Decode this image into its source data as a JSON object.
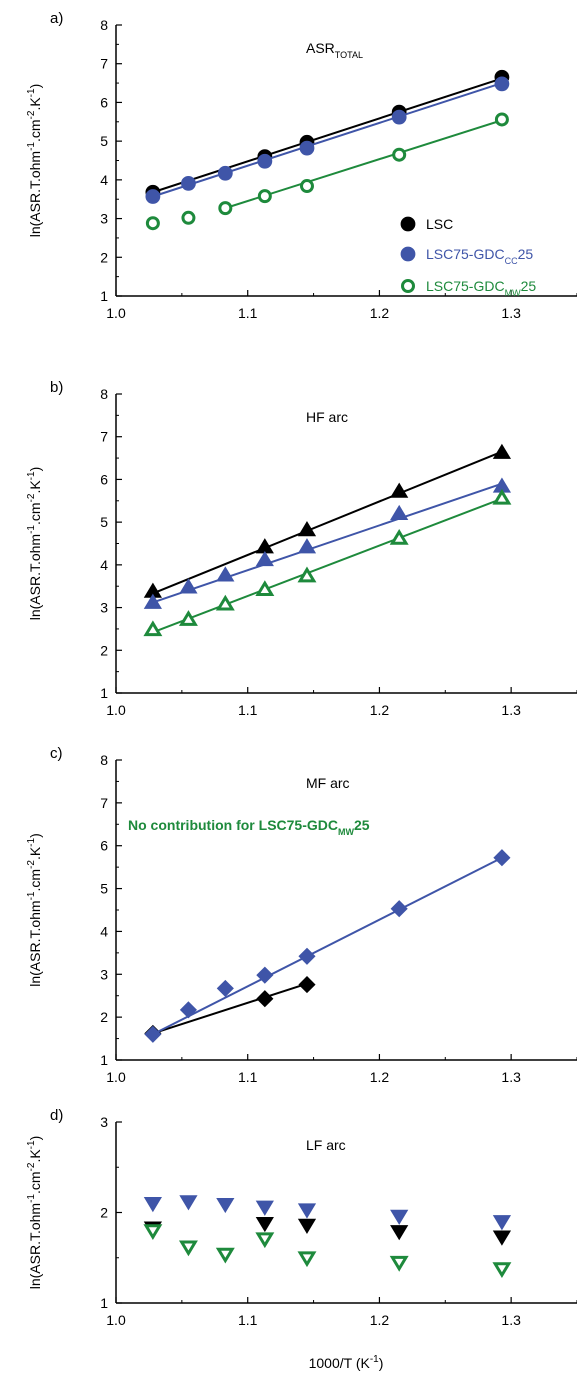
{
  "figure": {
    "x_axis_label": "1000/T (K",
    "x_axis_label_sup": "-1",
    "x_axis_label_end": ")"
  },
  "colors": {
    "LSC": "#000000",
    "GDC_CC": "#3f55a8",
    "GDC_MW": "#1e8a3c"
  },
  "legend": [
    {
      "series": "LSC",
      "text": "LSC",
      "sub": "",
      "tail": "",
      "color": "#000000"
    },
    {
      "series": "GDC_CC",
      "text": "LSC75-GDC",
      "sub": "CC",
      "tail": "25",
      "color": "#3f55a8"
    },
    {
      "series": "GDC_MW",
      "text": "LSC75-GDC",
      "sub": "MW",
      "tail": "25",
      "color": "#1e8a3c"
    }
  ],
  "chart_data": [
    {
      "type": "scatter",
      "panel_label": "a)",
      "title": "ASR",
      "title_sub": "TOTAL",
      "note": "",
      "note_sub": "",
      "note_tail": "",
      "ylabel_pre": "ln(ASR.T.ohm",
      "ylabel_sup1": "-1",
      "ylabel_mid": ".cm",
      "ylabel_sup2": "-2",
      "ylabel_mid2": ".K",
      "ylabel_sup3": "-1",
      "ylabel_post": ")",
      "xlim": [
        1.0,
        1.35
      ],
      "ylim": [
        1,
        8
      ],
      "xticks": [
        "1.0",
        "1.1",
        "1.2",
        "1.3"
      ],
      "yticks": [
        "1",
        "2",
        "3",
        "4",
        "5",
        "6",
        "7",
        "8"
      ],
      "marker": "circle",
      "show_legend": true,
      "series": [
        {
          "name": "LSC",
          "color_key": "LSC",
          "filled": true,
          "x": [
            1.028,
            1.113,
            1.145,
            1.215,
            1.293
          ],
          "y": [
            3.68,
            4.6,
            4.97,
            5.75,
            6.65
          ],
          "fit": [
            [
              1.028,
              3.68
            ],
            [
              1.293,
              6.62
            ]
          ]
        },
        {
          "name": "LSC75-GDCCC25",
          "color_key": "GDC_CC",
          "filled": true,
          "x": [
            1.028,
            1.055,
            1.083,
            1.113,
            1.145,
            1.215,
            1.293
          ],
          "y": [
            3.57,
            3.91,
            4.17,
            4.48,
            4.82,
            5.62,
            6.48
          ],
          "fit": [
            [
              1.028,
              3.57
            ],
            [
              1.293,
              6.5
            ]
          ]
        },
        {
          "name": "LSC75-GDCMW25",
          "color_key": "GDC_MW",
          "filled": false,
          "x": [
            1.028,
            1.055,
            1.083,
            1.113,
            1.145,
            1.215,
            1.293
          ],
          "y": [
            2.88,
            3.02,
            3.27,
            3.58,
            3.84,
            4.65,
            5.56
          ],
          "fit": [
            [
              1.083,
              3.27
            ],
            [
              1.293,
              5.54
            ]
          ]
        }
      ]
    },
    {
      "type": "scatter",
      "panel_label": "b)",
      "title": "HF arc",
      "title_sub": "",
      "note": "",
      "note_sub": "",
      "note_tail": "",
      "ylabel_pre": "ln(ASR.T.ohm",
      "ylabel_sup1": "-1",
      "ylabel_mid": ".cm",
      "ylabel_sup2": "-2",
      "ylabel_mid2": ".K",
      "ylabel_sup3": "-1",
      "ylabel_post": ")",
      "xlim": [
        1.0,
        1.35
      ],
      "ylim": [
        1,
        8
      ],
      "xticks": [
        "1.0",
        "1.1",
        "1.2",
        "1.3"
      ],
      "yticks": [
        "1",
        "2",
        "3",
        "4",
        "5",
        "6",
        "7",
        "8"
      ],
      "marker": "triangle-up",
      "show_legend": false,
      "series": [
        {
          "name": "LSC",
          "color_key": "LSC",
          "filled": true,
          "x": [
            1.028,
            1.113,
            1.145,
            1.215,
            1.293
          ],
          "y": [
            3.38,
            4.42,
            4.82,
            5.72,
            6.63
          ],
          "fit": [
            [
              1.028,
              3.33
            ],
            [
              1.293,
              6.65
            ]
          ]
        },
        {
          "name": "LSC75-GDCCC25",
          "color_key": "GDC_CC",
          "filled": true,
          "x": [
            1.028,
            1.055,
            1.083,
            1.113,
            1.145,
            1.215,
            1.293
          ],
          "y": [
            3.12,
            3.48,
            3.76,
            4.12,
            4.42,
            5.2,
            5.84
          ],
          "fit": [
            [
              1.028,
              3.12
            ],
            [
              1.293,
              5.9
            ]
          ]
        },
        {
          "name": "LSC75-GDCMW25",
          "color_key": "GDC_MW",
          "filled": false,
          "x": [
            1.028,
            1.055,
            1.083,
            1.113,
            1.145,
            1.215,
            1.293
          ],
          "y": [
            2.48,
            2.72,
            3.08,
            3.42,
            3.74,
            4.62,
            5.56
          ],
          "fit": [
            [
              1.028,
              2.42
            ],
            [
              1.293,
              5.55
            ]
          ]
        }
      ]
    },
    {
      "type": "scatter",
      "panel_label": "c)",
      "title": "MF arc",
      "title_sub": "",
      "note": "No contribution for LSC75-GDC",
      "note_sub": "MW",
      "note_tail": "25",
      "ylabel_pre": "ln(ASR.T.ohm",
      "ylabel_sup1": "-1",
      "ylabel_mid": ".cm",
      "ylabel_sup2": "-2",
      "ylabel_mid2": ".K",
      "ylabel_sup3": "-1",
      "ylabel_post": ")",
      "xlim": [
        1.0,
        1.35
      ],
      "ylim": [
        1,
        8
      ],
      "xticks": [
        "1.0",
        "1.1",
        "1.2",
        "1.3"
      ],
      "yticks": [
        "1",
        "2",
        "3",
        "4",
        "5",
        "6",
        "7",
        "8"
      ],
      "marker": "diamond",
      "show_legend": false,
      "series": [
        {
          "name": "LSC",
          "color_key": "LSC",
          "filled": true,
          "x": [
            1.028,
            1.113,
            1.145
          ],
          "y": [
            1.62,
            2.43,
            2.76
          ],
          "fit": [
            [
              1.028,
              1.62
            ],
            [
              1.145,
              2.78
            ]
          ]
        },
        {
          "name": "LSC75-GDCCC25",
          "color_key": "GDC_CC",
          "filled": true,
          "x": [
            1.028,
            1.055,
            1.083,
            1.113,
            1.145,
            1.215,
            1.293
          ],
          "y": [
            1.6,
            2.17,
            2.67,
            2.98,
            3.42,
            4.53,
            5.72
          ],
          "fit": [
            [
              1.028,
              1.6
            ],
            [
              1.293,
              5.72
            ]
          ]
        }
      ]
    },
    {
      "type": "scatter",
      "panel_label": "d)",
      "title": "LF arc",
      "title_sub": "",
      "note": "",
      "note_sub": "",
      "note_tail": "",
      "ylabel_pre": "ln(ASR.T.ohm",
      "ylabel_sup1": "-1",
      "ylabel_mid": ".cm",
      "ylabel_sup2": "-2",
      "ylabel_mid2": ".K",
      "ylabel_sup3": "-1",
      "ylabel_post": ")",
      "xlim": [
        1.0,
        1.35
      ],
      "ylim": [
        1,
        3
      ],
      "xticks": [
        "1.0",
        "1.1",
        "1.2",
        "1.3"
      ],
      "yticks": [
        "1",
        "2",
        "3"
      ],
      "marker": "triangle-down",
      "show_legend": false,
      "series": [
        {
          "name": "LSC",
          "color_key": "LSC",
          "filled": true,
          "x": [
            1.028,
            1.113,
            1.145,
            1.215,
            1.293
          ],
          "y": [
            1.83,
            1.88,
            1.86,
            1.79,
            1.73
          ],
          "fit": null
        },
        {
          "name": "LSC75-GDCCC25",
          "color_key": "GDC_CC",
          "filled": true,
          "x": [
            1.028,
            1.055,
            1.083,
            1.113,
            1.145,
            1.215,
            1.293
          ],
          "y": [
            2.1,
            2.12,
            2.09,
            2.06,
            2.03,
            1.96,
            1.9
          ],
          "fit": null
        },
        {
          "name": "LSC75-GDCMW25",
          "color_key": "GDC_MW",
          "filled": false,
          "x": [
            1.028,
            1.055,
            1.083,
            1.113,
            1.145,
            1.215,
            1.293
          ],
          "y": [
            1.8,
            1.62,
            1.54,
            1.71,
            1.5,
            1.45,
            1.38
          ],
          "fit": null
        }
      ]
    }
  ]
}
